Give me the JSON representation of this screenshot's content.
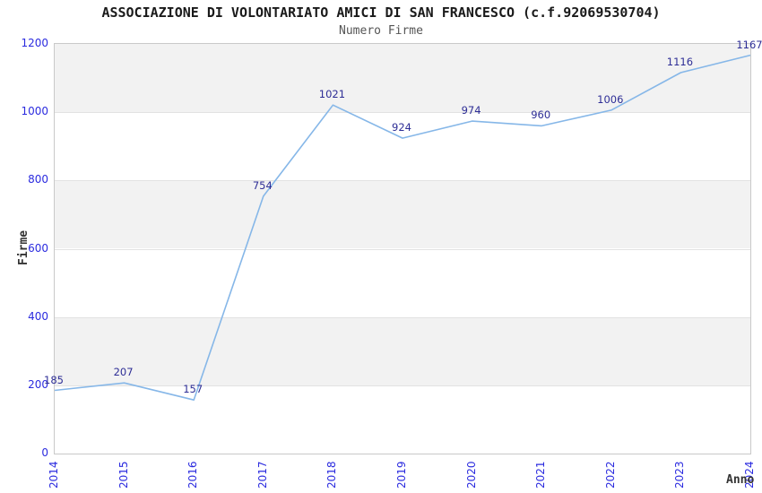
{
  "chart_data": {
    "type": "line",
    "title": "ASSOCIAZIONE DI VOLONTARIATO AMICI DI SAN FRANCESCO (c.f.92069530704)",
    "subtitle": "Numero Firme",
    "xlabel": "Anno",
    "ylabel": "Firme",
    "categories": [
      "2014",
      "2015",
      "2016",
      "2017",
      "2018",
      "2019",
      "2020",
      "2021",
      "2022",
      "2023",
      "2024"
    ],
    "series": [
      {
        "name": "Numero Firme",
        "values": [
          185,
          207,
          157,
          754,
          1021,
          924,
          974,
          960,
          1006,
          1116,
          1167
        ]
      }
    ],
    "data_labels": [
      "185",
      "207",
      "157",
      "754",
      "1021",
      "924",
      "974",
      "960",
      "1006",
      "1116",
      "1167"
    ],
    "ylim": [
      0,
      1200
    ],
    "yticks": [
      0,
      200,
      400,
      600,
      800,
      1000,
      1200
    ],
    "grid": "horizontal-bands",
    "legend": "none",
    "colors": {
      "line": "#86b7e8",
      "tick_label": "#2b2bdf",
      "data_label": "#2e2e96",
      "title": "#1a1a1a",
      "subtitle": "#555555",
      "axis_title": "#333333",
      "band_fill": "#f2f2f2",
      "gridline": "#e2e2e2",
      "plot_border": "#c9c9c9",
      "background": "#ffffff"
    }
  }
}
